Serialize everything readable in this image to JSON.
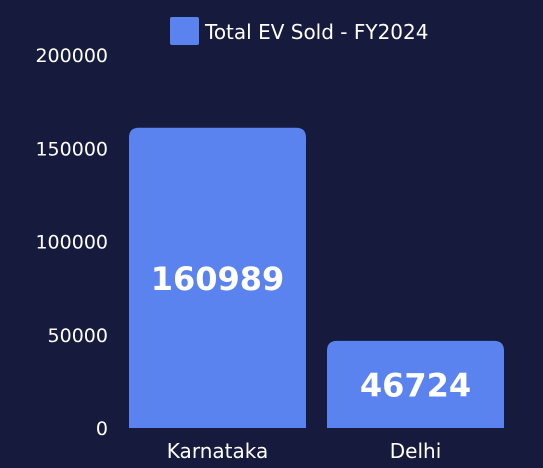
{
  "chart_data": {
    "type": "bar",
    "categories": [
      "Karnataka",
      "Delhi"
    ],
    "series": [
      {
        "name": "Total EV Sold - FY2024",
        "values": [
          160989,
          46724
        ]
      }
    ],
    "y_ticks": [
      "0",
      "50000",
      "100000",
      "150000",
      "200000"
    ],
    "ylim": [
      0,
      200000
    ],
    "data_labels": [
      "160989",
      "46724"
    ],
    "legend_position": "top",
    "grid": false
  },
  "colors": {
    "background": "#161a3c",
    "bar": "#5b83ef",
    "text": "#ffffff"
  }
}
